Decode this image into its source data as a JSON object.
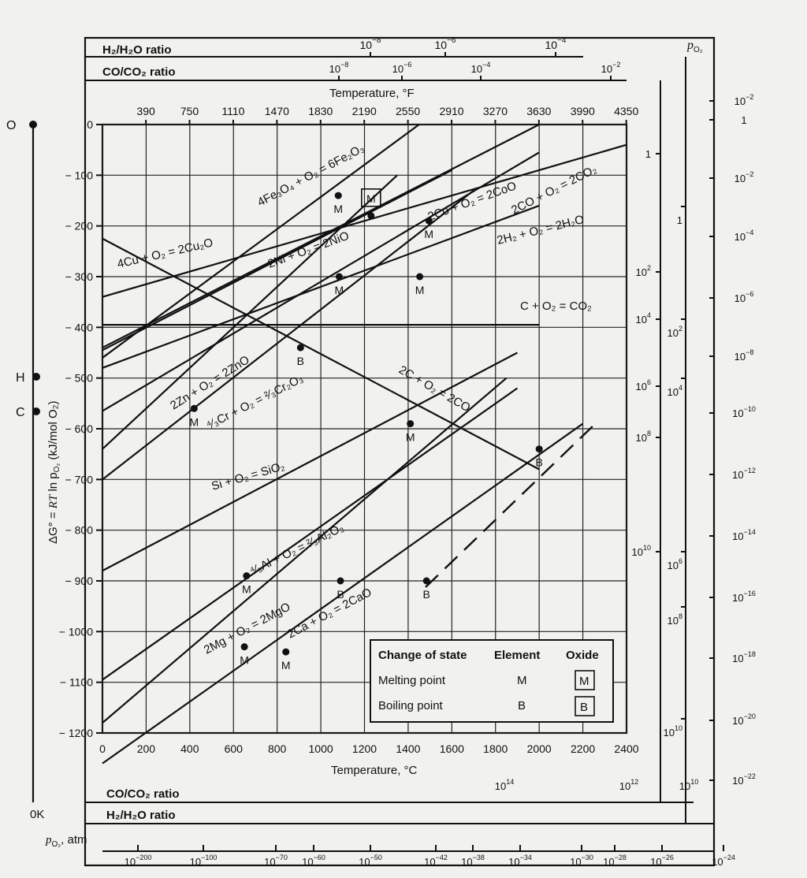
{
  "chart_data": {
    "type": "line",
    "title": "",
    "xlabel": "Temperature, °C",
    "ylabel": "ΔG° = RT ln p_O2 (kJ/mol O2)",
    "xlim": [
      0,
      2400
    ],
    "ylim": [
      -1200,
      0
    ],
    "x_ticks": [
      "0",
      "200",
      "400",
      "600",
      "800",
      "1000",
      "1200",
      "1400",
      "1600",
      "1800",
      "2000",
      "2200",
      "2400"
    ],
    "y_ticks": [
      "0",
      "− 100",
      "− 200",
      "− 300",
      "− 400",
      "− 500",
      "− 600",
      "− 700",
      "− 800",
      "− 900",
      "− 1000",
      "− 1100",
      "− 1200"
    ],
    "top_axis": {
      "label": "Temperature, °F",
      "ticks": [
        "390",
        "750",
        "1110",
        "1470",
        "1830",
        "2190",
        "2550",
        "2910",
        "3270",
        "3630",
        "3990",
        "4350"
      ]
    },
    "series": [
      {
        "name": "4Cu + O2 = 2Cu2O",
        "x": [
          0,
          2400
        ],
        "y": [
          -340,
          -40
        ]
      },
      {
        "name": "4Fe3O4 + O2 = 6Fe2O3",
        "x": [
          0,
          1450
        ],
        "y": [
          -460,
          0
        ]
      },
      {
        "name": "2Ni + O2 = 2NiO",
        "x": [
          0,
          2000
        ],
        "y": [
          -440,
          0
        ]
      },
      {
        "name": "2Co + O2 = 2CoO",
        "x": [
          0,
          1600
        ],
        "y": [
          -445,
          -90
        ]
      },
      {
        "name": "2CO + O2 = 2CO2",
        "x": [
          0,
          2000
        ],
        "y": [
          -565,
          -55
        ]
      },
      {
        "name": "2H2 + O2 = 2H2O",
        "x": [
          0,
          2000
        ],
        "y": [
          -480,
          -160
        ]
      },
      {
        "name": "C + O2 = CO2",
        "x": [
          0,
          2000
        ],
        "y": [
          -395,
          -395
        ]
      },
      {
        "name": "2C + O2 = 2CO",
        "x": [
          0,
          2000
        ],
        "y": [
          -225,
          -680
        ]
      },
      {
        "name": "2Zn + O2 = 2ZnO",
        "x": [
          0,
          1350
        ],
        "y": [
          -640,
          -100
        ]
      },
      {
        "name": "4/3Cr + O2 = 2/3Cr2O3",
        "x": [
          0,
          1700
        ],
        "y": [
          -700,
          -130
        ]
      },
      {
        "name": "Si + O2 = SiO2",
        "x": [
          0,
          1900
        ],
        "y": [
          -880,
          -450
        ]
      },
      {
        "name": "4/3Al + O2 = 2/3Al2O3",
        "x": [
          0,
          1900
        ],
        "y": [
          -1095,
          -520
        ]
      },
      {
        "name": "2Mg + O2 = 2MgO",
        "x": [
          0,
          1850
        ],
        "y": [
          -1180,
          -500
        ]
      },
      {
        "name": "2Ca + O2 = 2CaO",
        "x": [
          0,
          2200
        ],
        "y": [
          -1260,
          -590
        ]
      }
    ],
    "transition_markers": [
      {
        "kind": "M",
        "type": "Element",
        "x": 1084,
        "y": -300
      },
      {
        "kind": "M",
        "type": "Element",
        "x": 1453,
        "y": -300
      },
      {
        "kind": "M",
        "type": "Oxide",
        "x": 1230,
        "y": -180
      },
      {
        "kind": "M",
        "type": "Element",
        "x": 1495,
        "y": -190
      },
      {
        "kind": "M",
        "type": "Element",
        "x": 1080,
        "y": -140
      },
      {
        "kind": "M",
        "type": "Element",
        "x": 420,
        "y": -560
      },
      {
        "kind": "B",
        "type": "Element",
        "x": 907,
        "y": -440
      },
      {
        "kind": "M",
        "type": "Element",
        "x": 1410,
        "y": -590
      },
      {
        "kind": "M",
        "type": "Element",
        "x": 660,
        "y": -890
      },
      {
        "kind": "B",
        "type": "Element",
        "x": 2000,
        "y": -640
      },
      {
        "kind": "M",
        "type": "Element",
        "x": 650,
        "y": -1030
      },
      {
        "kind": "B",
        "type": "Element",
        "x": 1090,
        "y": -900
      },
      {
        "kind": "M",
        "type": "Element",
        "x": 840,
        "y": -1040
      },
      {
        "kind": "B",
        "type": "Element",
        "x": 1484,
        "y": -900
      }
    ],
    "legend_position": "bottom-right",
    "grid": true
  },
  "labels": {
    "h2_top": "H₂/H₂O ratio",
    "co_top": "CO/CO₂ ratio",
    "temp_f": "Temperature, °F",
    "temp_c": "Temperature, °C",
    "co_bottom": "CO/CO₂ ratio",
    "h2_bottom": "H₂/H₂O ratio",
    "po2_atm": "p",
    "po2_atm_sub": "O₂",
    "po2_atm_unit": ", atm",
    "po2_right": "p",
    "po2_right_sub": "O₂",
    "ok": "0K",
    "o": "O",
    "h": "H",
    "c": "C",
    "ylab_a": "ΔG° = ",
    "ylab_b": "RT",
    "ylab_c": " ln p",
    "ylab_d": "O₂",
    "ylab_e": " (kJ/mol O₂)"
  },
  "equation_labels": {
    "cu": "4Cu + O₂ = 2Cu₂O",
    "fe": "4Fe₃O₄ + O₂ = 6Fe₂O₃",
    "ni": "2Ni + O₂ = 2NiO",
    "co": "2Co + O₂ = 2CoO",
    "co2": "2CO + O₂ = 2CO₂",
    "h2": "2H₂ + O₂ = 2H₂O",
    "cco2": "C + O₂ = CO₂",
    "cco": "2C + O₂ = 2CO",
    "zn": "2Zn + O₂ = 2ZnO",
    "cr": "⁴⁄₃Cr + O₂ = ²⁄₃Cr₂O₃",
    "si": "Si + O₂ = SiO₂",
    "al": "⁴⁄₃Al + O₂ = ²⁄₃Al₂O₃",
    "mg": "2Mg + O₂ = 2MgO",
    "ca": "2Ca + O₂ = 2CaO"
  },
  "legend": {
    "header_state": "Change of state",
    "header_element": "Element",
    "header_oxide": "Oxide",
    "melt": "Melting point",
    "boil": "Boiling point",
    "m": "M",
    "b": "B"
  },
  "marker_text": {
    "m": "M",
    "b": "B"
  },
  "scales": {
    "h2_top": [
      {
        "b": "10",
        "e": "−8"
      },
      {
        "b": "10",
        "e": "−6"
      },
      {
        "b": "10",
        "e": "−4"
      }
    ],
    "co_top": [
      {
        "b": "10",
        "e": "−8"
      },
      {
        "b": "10",
        "e": "−6"
      },
      {
        "b": "10",
        "e": "−4"
      },
      {
        "b": "10",
        "e": "−2"
      }
    ],
    "po2_bottom": [
      {
        "b": "10",
        "e": "−200"
      },
      {
        "b": "10",
        "e": "−100"
      },
      {
        "b": "10",
        "e": "−70"
      },
      {
        "b": "10",
        "e": "−60"
      },
      {
        "b": "10",
        "e": "−50"
      },
      {
        "b": "10",
        "e": "−42"
      },
      {
        "b": "10",
        "e": "−38"
      },
      {
        "b": "10",
        "e": "−34"
      },
      {
        "b": "10",
        "e": "−30"
      },
      {
        "b": "10",
        "e": "−28"
      },
      {
        "b": "10",
        "e": "−26"
      },
      {
        "b": "10",
        "e": "−24"
      }
    ],
    "co_bottom": [
      {
        "b": "10",
        "e": "14"
      },
      {
        "b": "10",
        "e": "12"
      },
      {
        "b": "10",
        "e": "10"
      }
    ],
    "co_right": [
      {
        "b": "1",
        "e": ""
      },
      {
        "b": "10",
        "e": "2"
      },
      {
        "b": "10",
        "e": "4"
      },
      {
        "b": "10",
        "e": "6"
      },
      {
        "b": "10",
        "e": "8"
      },
      {
        "b": "10",
        "e": "10"
      }
    ],
    "h2_right": [
      {
        "b": "1",
        "e": ""
      },
      {
        "b": "10",
        "e": "2"
      },
      {
        "b": "10",
        "e": "4"
      },
      {
        "b": "10",
        "e": "6"
      },
      {
        "b": "10",
        "e": "8"
      },
      {
        "b": "10",
        "e": "10"
      }
    ],
    "po2_right": [
      {
        "b": "10",
        "e": "−2"
      },
      {
        "b": "1",
        "e": ""
      },
      {
        "b": "10",
        "e": "−2"
      },
      {
        "b": "10",
        "e": "−4"
      },
      {
        "b": "10",
        "e": "−6"
      },
      {
        "b": "10",
        "e": "−8"
      },
      {
        "b": "10",
        "e": "−10"
      },
      {
        "b": "10",
        "e": "−12"
      },
      {
        "b": "10",
        "e": "−14"
      },
      {
        "b": "10",
        "e": "−16"
      },
      {
        "b": "10",
        "e": "−18"
      },
      {
        "b": "10",
        "e": "−20"
      },
      {
        "b": "10",
        "e": "−22"
      }
    ]
  }
}
